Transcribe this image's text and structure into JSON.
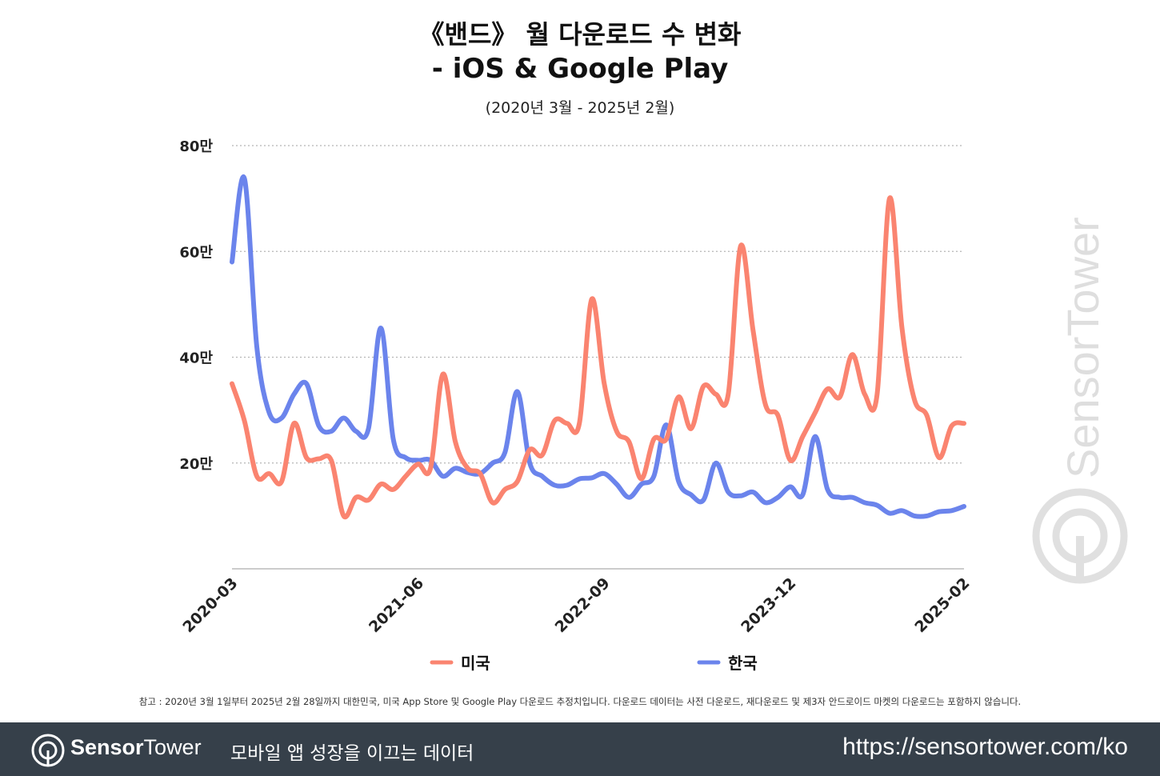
{
  "chart_data": {
    "type": "line",
    "title_line1": "《밴드》 월 다운로드 수 변화",
    "title_line2": "- iOS & Google Play",
    "subtitle": "(2020년 3월 - 2025년 2월)",
    "y_ticks": [
      "20만",
      "40만",
      "60만",
      "80만"
    ],
    "y_tick_values": [
      200000,
      400000,
      600000,
      800000
    ],
    "ylim": [
      0,
      800000
    ],
    "x_tick_labels": [
      "2020-03",
      "2021-06",
      "2022-09",
      "2023-12",
      "2025-02"
    ],
    "x_tick_index": [
      0,
      15,
      30,
      45,
      59
    ],
    "grid": true,
    "legend_position": "bottom",
    "series": [
      {
        "name": "미국",
        "color": "#fa8470",
        "values": [
          350000,
          280000,
          175000,
          180000,
          165000,
          275000,
          210000,
          208000,
          205000,
          100000,
          135000,
          130000,
          160000,
          150000,
          175000,
          198000,
          190000,
          368000,
          240000,
          190000,
          180000,
          125000,
          150000,
          165000,
          225000,
          215000,
          280000,
          275000,
          275000,
          510000,
          350000,
          260000,
          240000,
          170000,
          245000,
          245000,
          325000,
          265000,
          345000,
          330000,
          330000,
          610000,
          450000,
          310000,
          290000,
          205000,
          250000,
          295000,
          340000,
          325000,
          405000,
          330000,
          330000,
          700000,
          455000,
          320000,
          290000,
          210000,
          270000,
          275000
        ]
      },
      {
        "name": "한국",
        "color": "#6b84ec",
        "values": [
          580000,
          738000,
          420000,
          295000,
          285000,
          330000,
          350000,
          270000,
          260000,
          285000,
          260000,
          265000,
          455000,
          245000,
          210000,
          205000,
          205000,
          175000,
          190000,
          182000,
          180000,
          200000,
          220000,
          335000,
          200000,
          175000,
          158000,
          158000,
          170000,
          172000,
          180000,
          160000,
          135000,
          160000,
          175000,
          272000,
          165000,
          140000,
          130000,
          200000,
          145000,
          138000,
          145000,
          125000,
          135000,
          155000,
          140000,
          250000,
          150000,
          135000,
          135000,
          125000,
          120000,
          105000,
          110000,
          100000,
          100000,
          108000,
          110000,
          118000
        ]
      }
    ]
  },
  "footnote": "참고 : 2020년 3월 1일부터 2025년 2월 28일까지 대한민국, 미국 App Store 및 Google Play 다운로드 추정치입니다. 다운로드 데이터는 사전 다운로드, 재다운로드 및 제3자 안드로이드 마켓의 다운로드는 포함하지 않습니다.",
  "watermark": "SensorTower",
  "footer": {
    "brand_bold": "Sensor",
    "brand_rest": "Tower",
    "tagline": "모바일 앱 성장을 이끄는 데이터",
    "url": "https://sensortower.com/ko"
  },
  "colors": {
    "footer_bg": "#36404a",
    "axis": "#bbbbbb",
    "grid": "#bbbbbb"
  }
}
